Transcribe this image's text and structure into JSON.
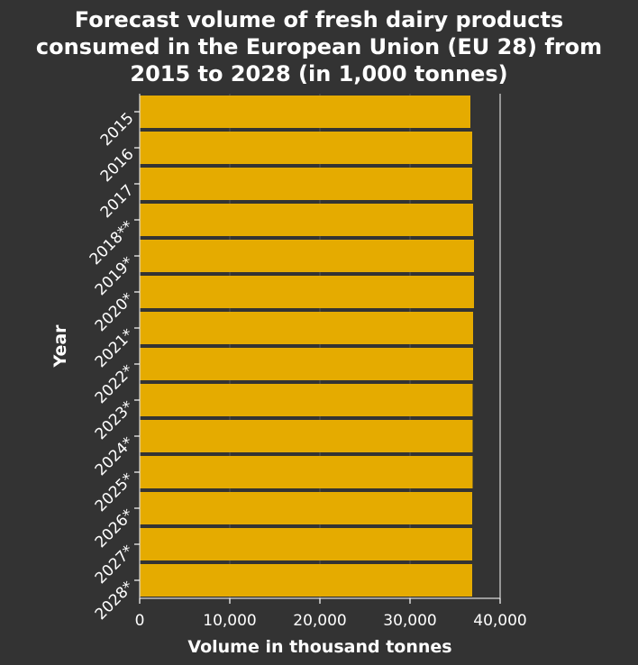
{
  "chart_data": {
    "type": "bar",
    "orientation": "horizontal",
    "title": "Forecast volume of fresh dairy products consumed in the European Union (EU 28) from 2015 to 2028 (in 1,000 tonnes)",
    "title_lines": [
      "Forecast volume of fresh dairy products",
      "consumed in the European Union (EU 28) from",
      "2015 to 2028 (in 1,000 tonnes)"
    ],
    "xlabel": "Volume in thousand tonnes",
    "ylabel": "Year",
    "xlim": [
      0,
      40000
    ],
    "xticks": [
      0,
      10000,
      20000,
      30000,
      40000
    ],
    "xtick_labels": [
      "0",
      "10,000",
      "20,000",
      "30,000",
      "40,000"
    ],
    "categories": [
      "2015",
      "2016",
      "2017",
      "2018**",
      "2019*",
      "2020*",
      "2021*",
      "2022*",
      "2023*",
      "2024*",
      "2025*",
      "2026*",
      "2027*",
      "2028*"
    ],
    "values": [
      36700,
      36900,
      36900,
      37000,
      37100,
      37100,
      37000,
      37000,
      36950,
      36950,
      36950,
      36900,
      36900,
      36900
    ],
    "grid": true,
    "colors": {
      "bar": "#e5ab00",
      "background": "#333333",
      "text": "#ffffff"
    }
  }
}
